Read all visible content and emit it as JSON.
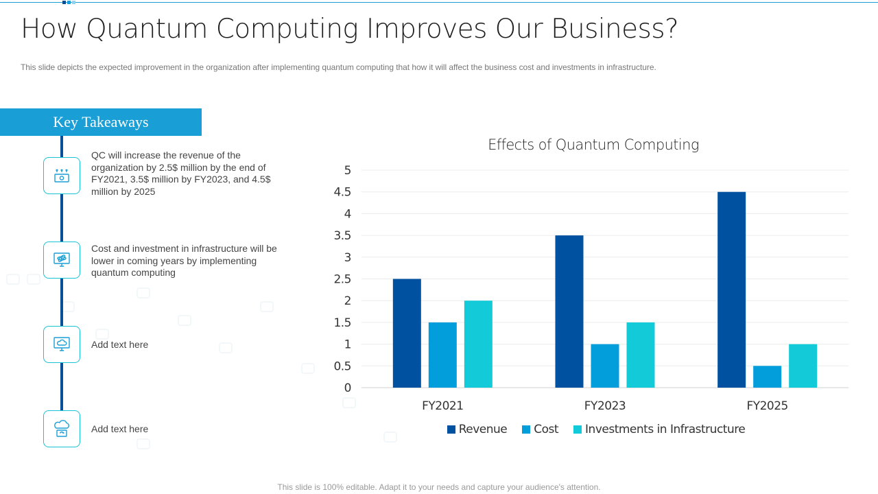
{
  "slide": {
    "title": "How Quantum Computing Improves Our Business?",
    "subtitle": "This slide depicts the expected improvement  in the organization  after implementing  quantum computing that how it will affect the business cost and investments in infrastructure.",
    "footer": "This slide is 100% editable. Adapt it to your needs and capture your audience's attention."
  },
  "takeaways": {
    "header": "Key Takeaways",
    "items": [
      {
        "icon": "money-growth-icon",
        "text": "QC will increase the revenue of the organization by 2.5$ million by the end of FY2021, 3.5$ million by FY2023, and 4.5$ million by 2025"
      },
      {
        "icon": "atom-monitor-icon",
        "text": "Cost and investment in infrastructure will be lower in coming years by implementing quantum computing"
      },
      {
        "icon": "cloud-monitor-icon",
        "text": "Add text here"
      },
      {
        "icon": "cloud-sync-icon",
        "text": "Add text here"
      }
    ]
  },
  "colors": {
    "accent": "#1a9ed6",
    "timeline": "#064f9a",
    "icon_border": "#19c3d6"
  },
  "chart_data": {
    "type": "bar",
    "title": "Effects of Quantum Computing",
    "categories": [
      "FY2021",
      "FY2023",
      "FY2025"
    ],
    "series": [
      {
        "name": "Revenue",
        "values": [
          2.5,
          3.5,
          4.5
        ],
        "color": "#00519f"
      },
      {
        "name": "Cost",
        "values": [
          1.5,
          1,
          0.5
        ],
        "color": "#029edb"
      },
      {
        "name": "Investments in Infrastructure",
        "values": [
          2,
          1.5,
          1
        ],
        "color": "#13cbd8"
      }
    ],
    "yticks": [
      "0",
      "0.5",
      "1",
      "1.5",
      "2",
      "2.5",
      "3",
      "3.5",
      "4",
      "4.5",
      "5"
    ],
    "ylim": [
      0,
      5
    ],
    "grid": true,
    "legend": "bottom"
  }
}
